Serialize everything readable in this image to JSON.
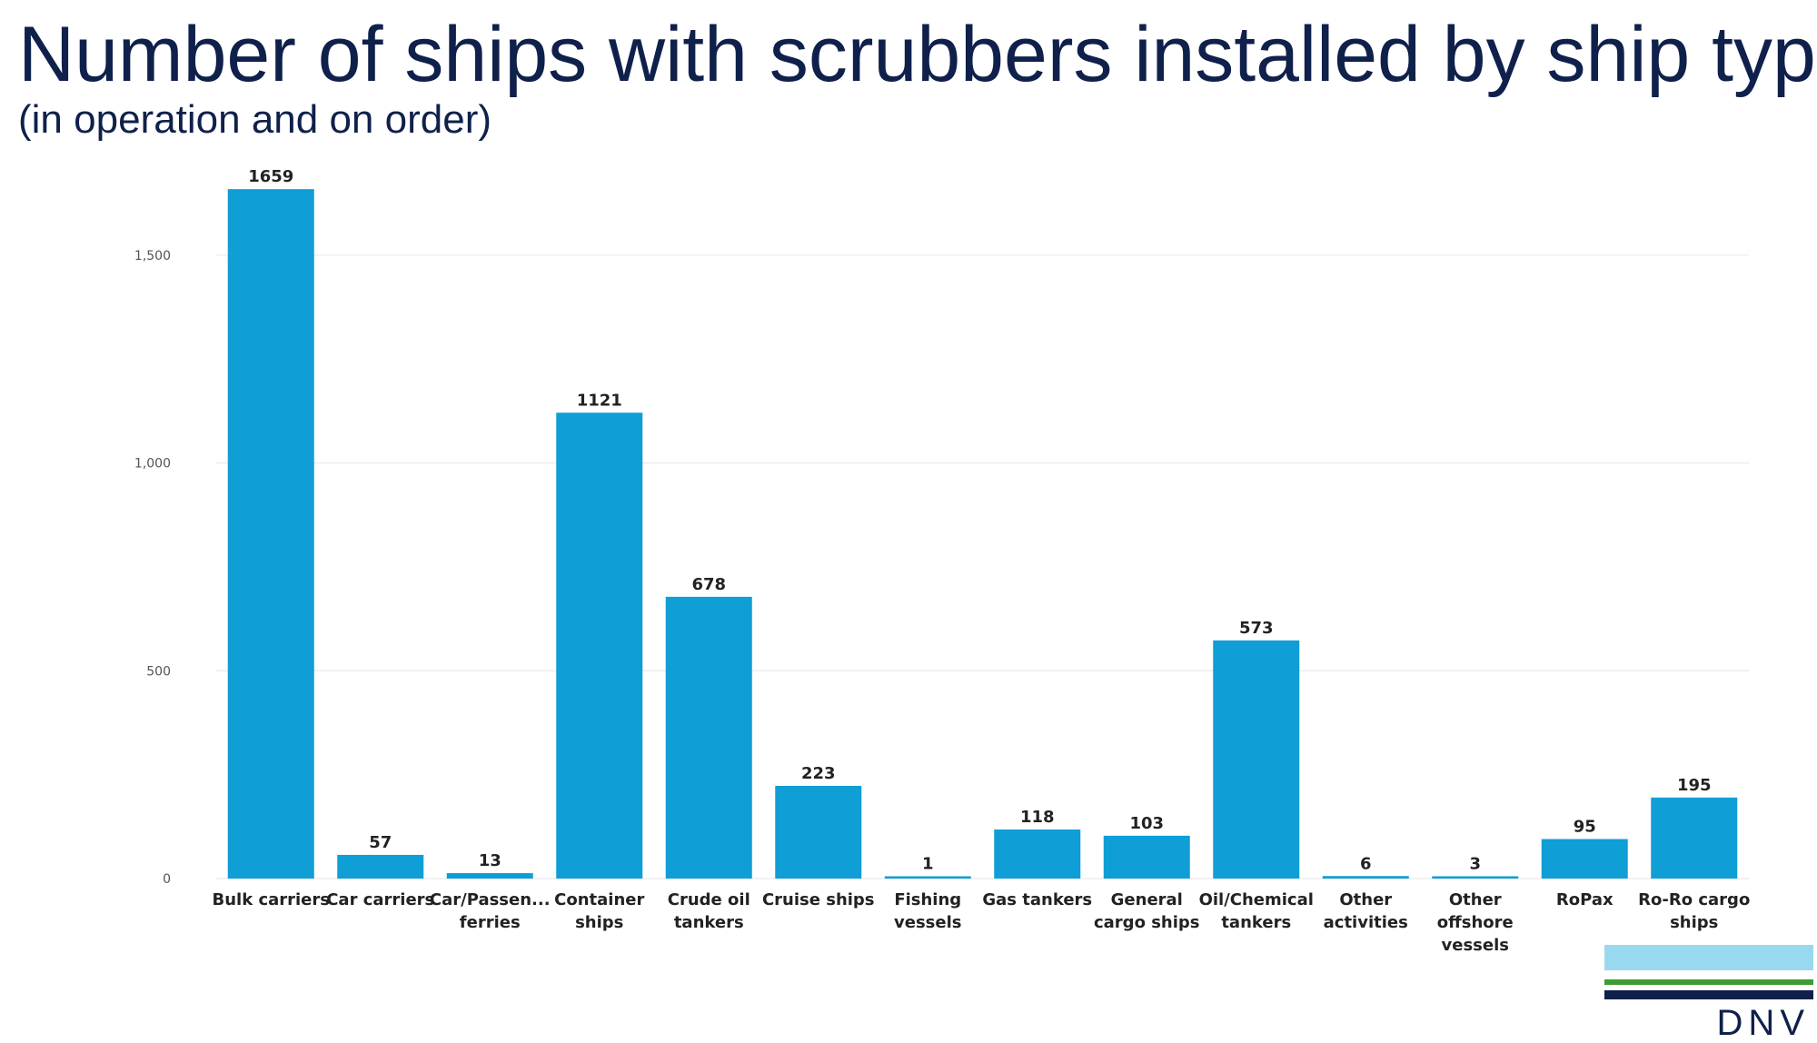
{
  "header": {
    "title": "Number of ships with scrubbers installed by ship type",
    "subtitle": "(in operation and on order)"
  },
  "logo": {
    "text": "DNV",
    "colors": [
      "#99d9f0",
      "#3f9c35",
      "#0f204b"
    ]
  },
  "colors": {
    "bar": "#0f9ed5",
    "title": "#0f204b",
    "grid": "#e6e6e6"
  },
  "chart_data": {
    "type": "bar",
    "title": "Number of ships with scrubbers installed by ship type",
    "subtitle": "(in operation and on order)",
    "xlabel": "",
    "ylabel": "",
    "categories": [
      "Bulk carriers",
      "Car carriers",
      "Car/Passen... ferries",
      "Container ships",
      "Crude oil tankers",
      "Cruise ships",
      "Fishing vessels",
      "Gas tankers",
      "General cargo ships",
      "Oil/Chemical tankers",
      "Other activities",
      "Other offshore vessels",
      "RoPax",
      "Ro-Ro cargo ships"
    ],
    "category_lines": [
      [
        "Bulk carriers"
      ],
      [
        "Car carriers"
      ],
      [
        "Car/Passen...",
        "ferries"
      ],
      [
        "Container",
        "ships"
      ],
      [
        "Crude oil",
        "tankers"
      ],
      [
        "Cruise ships"
      ],
      [
        "Fishing",
        "vessels"
      ],
      [
        "Gas tankers"
      ],
      [
        "General",
        "cargo ships"
      ],
      [
        "Oil/Chemical",
        "tankers"
      ],
      [
        "Other",
        "activities"
      ],
      [
        "Other",
        "offshore",
        "vessels"
      ],
      [
        "RoPax"
      ],
      [
        "Ro-Ro cargo",
        "ships"
      ]
    ],
    "values": [
      1659,
      57,
      13,
      1121,
      678,
      223,
      1,
      118,
      103,
      573,
      6,
      3,
      95,
      195
    ],
    "ylim": [
      0,
      1659
    ],
    "yticks": [
      0,
      500,
      1000,
      1500
    ],
    "ytick_labels": [
      "0",
      "500",
      "1,000",
      "1,500"
    ],
    "grid": true,
    "legend": "none"
  }
}
